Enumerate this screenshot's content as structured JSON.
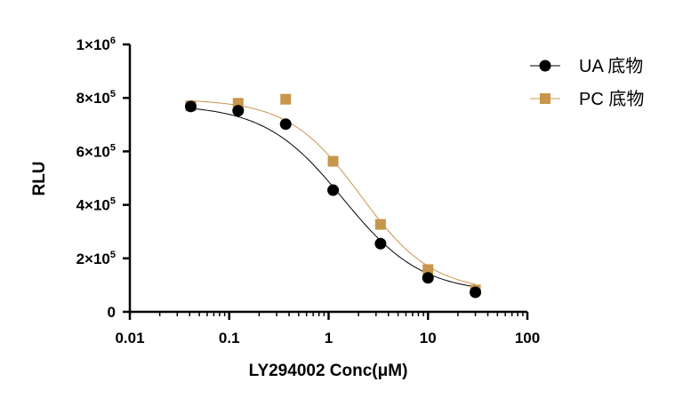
{
  "chart_data": {
    "type": "scatter",
    "xlabel": "LY294002 Conc(μM)",
    "ylabel": "RLU",
    "x_scale": "log",
    "xlim": [
      0.01,
      100
    ],
    "ylim": [
      0,
      1000000
    ],
    "x_ticks": [
      {
        "value": 0.01,
        "label": "0.01"
      },
      {
        "value": 0.1,
        "label": "0.1"
      },
      {
        "value": 1,
        "label": "1"
      },
      {
        "value": 10,
        "label": "10"
      },
      {
        "value": 100,
        "label": "100"
      }
    ],
    "y_ticks": [
      {
        "value": 0,
        "base": "0",
        "exp": ""
      },
      {
        "value": 200000,
        "base": "2×10",
        "exp": "5"
      },
      {
        "value": 400000,
        "base": "4×10",
        "exp": "5"
      },
      {
        "value": 600000,
        "base": "6×10",
        "exp": "5"
      },
      {
        "value": 800000,
        "base": "8×10",
        "exp": "5"
      },
      {
        "value": 1000000,
        "base": "1×10",
        "exp": "6"
      }
    ],
    "legend_position": "top-right",
    "series": [
      {
        "name": "UA 底物",
        "marker": "circle",
        "color": "#000000",
        "x": [
          0.041,
          0.123,
          0.37,
          1.11,
          3.33,
          10,
          30
        ],
        "y": [
          768000,
          752000,
          702000,
          455000,
          255000,
          127000,
          73000
        ],
        "fit": {
          "top": 775000,
          "bottom": 70000,
          "ec50": 1.4,
          "hill": 1.1
        }
      },
      {
        "name": "PC 底物",
        "marker": "square",
        "color": "#C8964B",
        "x": [
          0.041,
          0.123,
          0.37,
          1.11,
          3.33,
          10,
          30
        ],
        "y": [
          770000,
          780000,
          795000,
          563000,
          327000,
          158000,
          82000
        ],
        "fit": {
          "top": 795000,
          "bottom": 75000,
          "ec50": 2.1,
          "hill": 1.2
        }
      }
    ]
  }
}
